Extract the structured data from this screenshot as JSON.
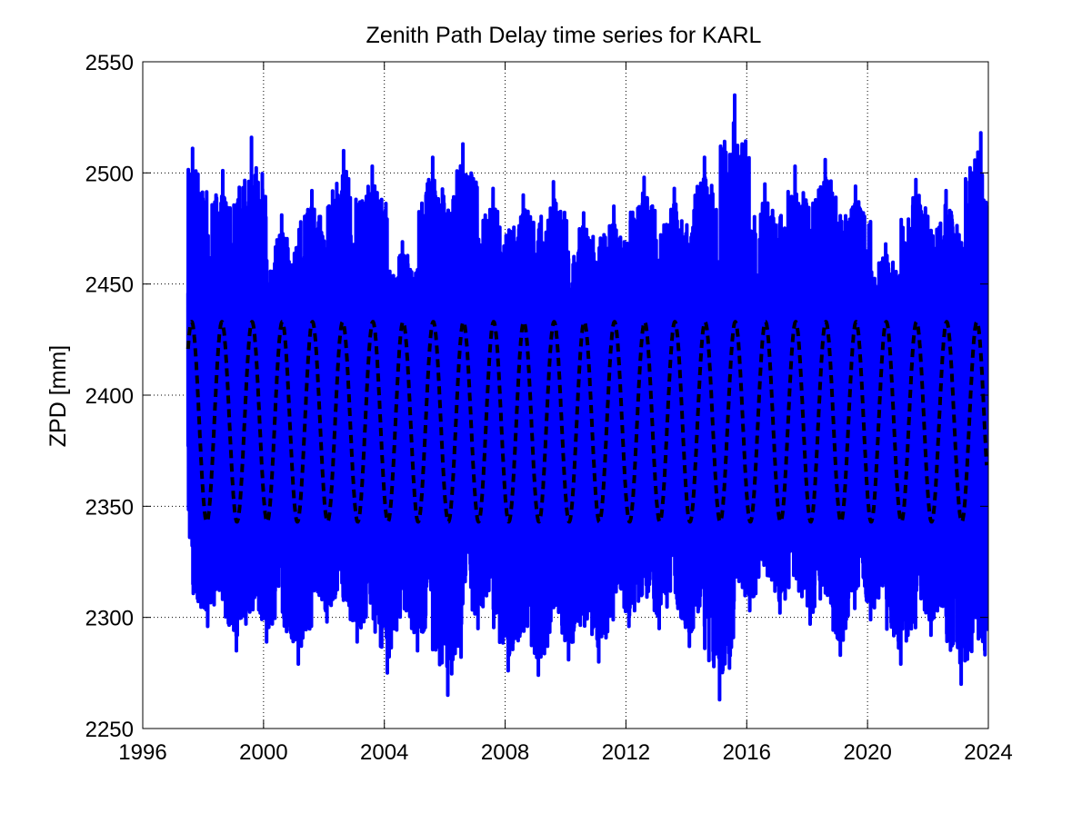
{
  "chart_data": {
    "type": "line",
    "title": "Zenith Path Delay time series for KARL",
    "xlabel": "",
    "ylabel": "ZPD [mm]",
    "xlim": [
      1996,
      2024
    ],
    "ylim": [
      2250,
      2550
    ],
    "xticks": [
      1996,
      2000,
      2004,
      2008,
      2012,
      2016,
      2020,
      2024
    ],
    "yticks": [
      2250,
      2300,
      2350,
      2400,
      2450,
      2500,
      2550
    ],
    "grid": true,
    "legend": "none",
    "series": [
      {
        "style": "solid",
        "color": "#0000ff",
        "description": "daily ZPD observations, annual cycle with large day-to-day scatter",
        "x_range": [
          1997.5,
          2023.95
        ],
        "annual_peaks": [
          {
            "x": 1997.65,
            "y": 2511
          },
          {
            "x": 1998.65,
            "y": 2501
          },
          {
            "x": 1999.6,
            "y": 2516
          },
          {
            "x": 2000.6,
            "y": 2481
          },
          {
            "x": 2001.6,
            "y": 2492
          },
          {
            "x": 2002.65,
            "y": 2510
          },
          {
            "x": 2003.6,
            "y": 2503
          },
          {
            "x": 2004.6,
            "y": 2469
          },
          {
            "x": 2005.6,
            "y": 2507
          },
          {
            "x": 2006.6,
            "y": 2513
          },
          {
            "x": 2007.6,
            "y": 2493
          },
          {
            "x": 2008.6,
            "y": 2490
          },
          {
            "x": 2009.6,
            "y": 2496
          },
          {
            "x": 2010.6,
            "y": 2482
          },
          {
            "x": 2011.6,
            "y": 2485
          },
          {
            "x": 2012.6,
            "y": 2498
          },
          {
            "x": 2013.6,
            "y": 2493
          },
          {
            "x": 2014.6,
            "y": 2507
          },
          {
            "x": 2015.6,
            "y": 2535
          },
          {
            "x": 2016.6,
            "y": 2495
          },
          {
            "x": 2017.6,
            "y": 2503
          },
          {
            "x": 2018.6,
            "y": 2506
          },
          {
            "x": 2019.6,
            "y": 2494
          },
          {
            "x": 2020.6,
            "y": 2468
          },
          {
            "x": 2021.6,
            "y": 2497
          },
          {
            "x": 2022.6,
            "y": 2492
          },
          {
            "x": 2023.75,
            "y": 2518
          }
        ],
        "annual_troughs": [
          {
            "x": 1998.15,
            "y": 2296
          },
          {
            "x": 1999.1,
            "y": 2285
          },
          {
            "x": 2000.1,
            "y": 2289
          },
          {
            "x": 2001.15,
            "y": 2279
          },
          {
            "x": 2002.1,
            "y": 2298
          },
          {
            "x": 2003.1,
            "y": 2289
          },
          {
            "x": 2004.1,
            "y": 2275
          },
          {
            "x": 2005.1,
            "y": 2285
          },
          {
            "x": 2006.1,
            "y": 2265
          },
          {
            "x": 2007.1,
            "y": 2295
          },
          {
            "x": 2008.1,
            "y": 2276
          },
          {
            "x": 2009.1,
            "y": 2274
          },
          {
            "x": 2010.1,
            "y": 2281
          },
          {
            "x": 2011.1,
            "y": 2280
          },
          {
            "x": 2012.1,
            "y": 2296
          },
          {
            "x": 2013.1,
            "y": 2295
          },
          {
            "x": 2014.1,
            "y": 2287
          },
          {
            "x": 2015.1,
            "y": 2263
          },
          {
            "x": 2016.1,
            "y": 2303
          },
          {
            "x": 2017.1,
            "y": 2302
          },
          {
            "x": 2018.1,
            "y": 2297
          },
          {
            "x": 2019.1,
            "y": 2283
          },
          {
            "x": 2020.1,
            "y": 2299
          },
          {
            "x": 2021.1,
            "y": 2279
          },
          {
            "x": 2022.1,
            "y": 2292
          },
          {
            "x": 2023.1,
            "y": 2270
          }
        ]
      },
      {
        "style": "dashed",
        "color": "#000000",
        "description": "fitted seasonal model",
        "model": {
          "type": "sinusoid",
          "mean": 2388,
          "amplitude": 45,
          "period_years": 1,
          "peak_phase_year_fraction": 0.62
        },
        "x_range": [
          1997.5,
          2023.95
        ]
      }
    ]
  }
}
